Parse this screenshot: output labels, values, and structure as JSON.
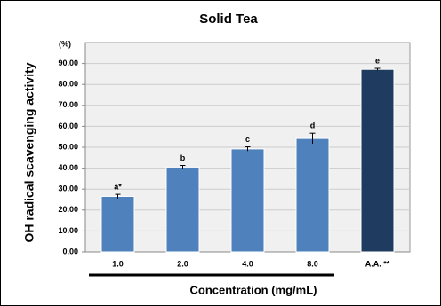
{
  "chart_data": {
    "type": "bar",
    "title": "Solid Tea",
    "y_label": "OH radical scavenging activity",
    "y_unit": "(%)",
    "x_label": "Concentration (mg/mL)",
    "categories": [
      "1.0",
      "2.0",
      "4.0",
      "8.0",
      "A.A. **"
    ],
    "values": [
      26.5,
      40.5,
      49.2,
      54.2,
      87.2
    ],
    "errors": [
      1.0,
      0.8,
      1.0,
      2.5,
      0.5
    ],
    "annotations": [
      "a*",
      "b",
      "c",
      "d",
      "e"
    ],
    "colors": [
      "#4f81bd",
      "#4f81bd",
      "#4f81bd",
      "#4f81bd",
      "#1f3b5f"
    ],
    "ylim": [
      0,
      100
    ],
    "yticks": [
      {
        "value": 0,
        "label": "0.00"
      },
      {
        "value": 10,
        "label": "10.00"
      },
      {
        "value": 20,
        "label": "20.00"
      },
      {
        "value": 30,
        "label": "30.00"
      },
      {
        "value": 40,
        "label": "40.00"
      },
      {
        "value": 50,
        "label": "50.00"
      },
      {
        "value": 60,
        "label": "60.00"
      },
      {
        "value": 70,
        "label": "70.00"
      },
      {
        "value": 80,
        "label": "80.00"
      },
      {
        "value": 90,
        "label": "90.00"
      }
    ],
    "grid": true
  }
}
